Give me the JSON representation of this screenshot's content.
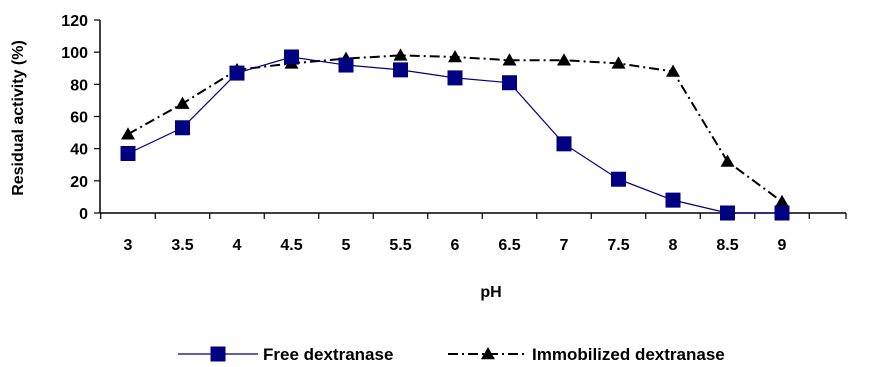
{
  "chart_data": {
    "type": "line",
    "title": "",
    "xlabel": "pH",
    "ylabel": "Residual  activity (%)",
    "categories": [
      "3",
      "3.5",
      "4",
      "4.5",
      "5",
      "5.5",
      "6",
      "6.5",
      "7",
      "7.5",
      "8",
      "8.5",
      "9"
    ],
    "ylim": [
      0,
      120
    ],
    "yticks": [
      "0",
      "20",
      "40",
      "60",
      "80",
      "100",
      "120"
    ],
    "grid": false,
    "legend_position": "bottom",
    "series": [
      {
        "name": "Free dextranase",
        "values": [
          37,
          53,
          87,
          97,
          92,
          89,
          84,
          81,
          43,
          21,
          8,
          0,
          0
        ],
        "color": "#000080",
        "line_style": "solid",
        "marker": "square"
      },
      {
        "name": "Immobilized dextranase",
        "values": [
          49,
          68,
          89,
          93,
          96,
          98,
          97,
          95,
          95,
          93,
          88,
          32,
          7
        ],
        "color": "#000000",
        "line_style": "dash-dot",
        "marker": "triangle"
      }
    ]
  }
}
